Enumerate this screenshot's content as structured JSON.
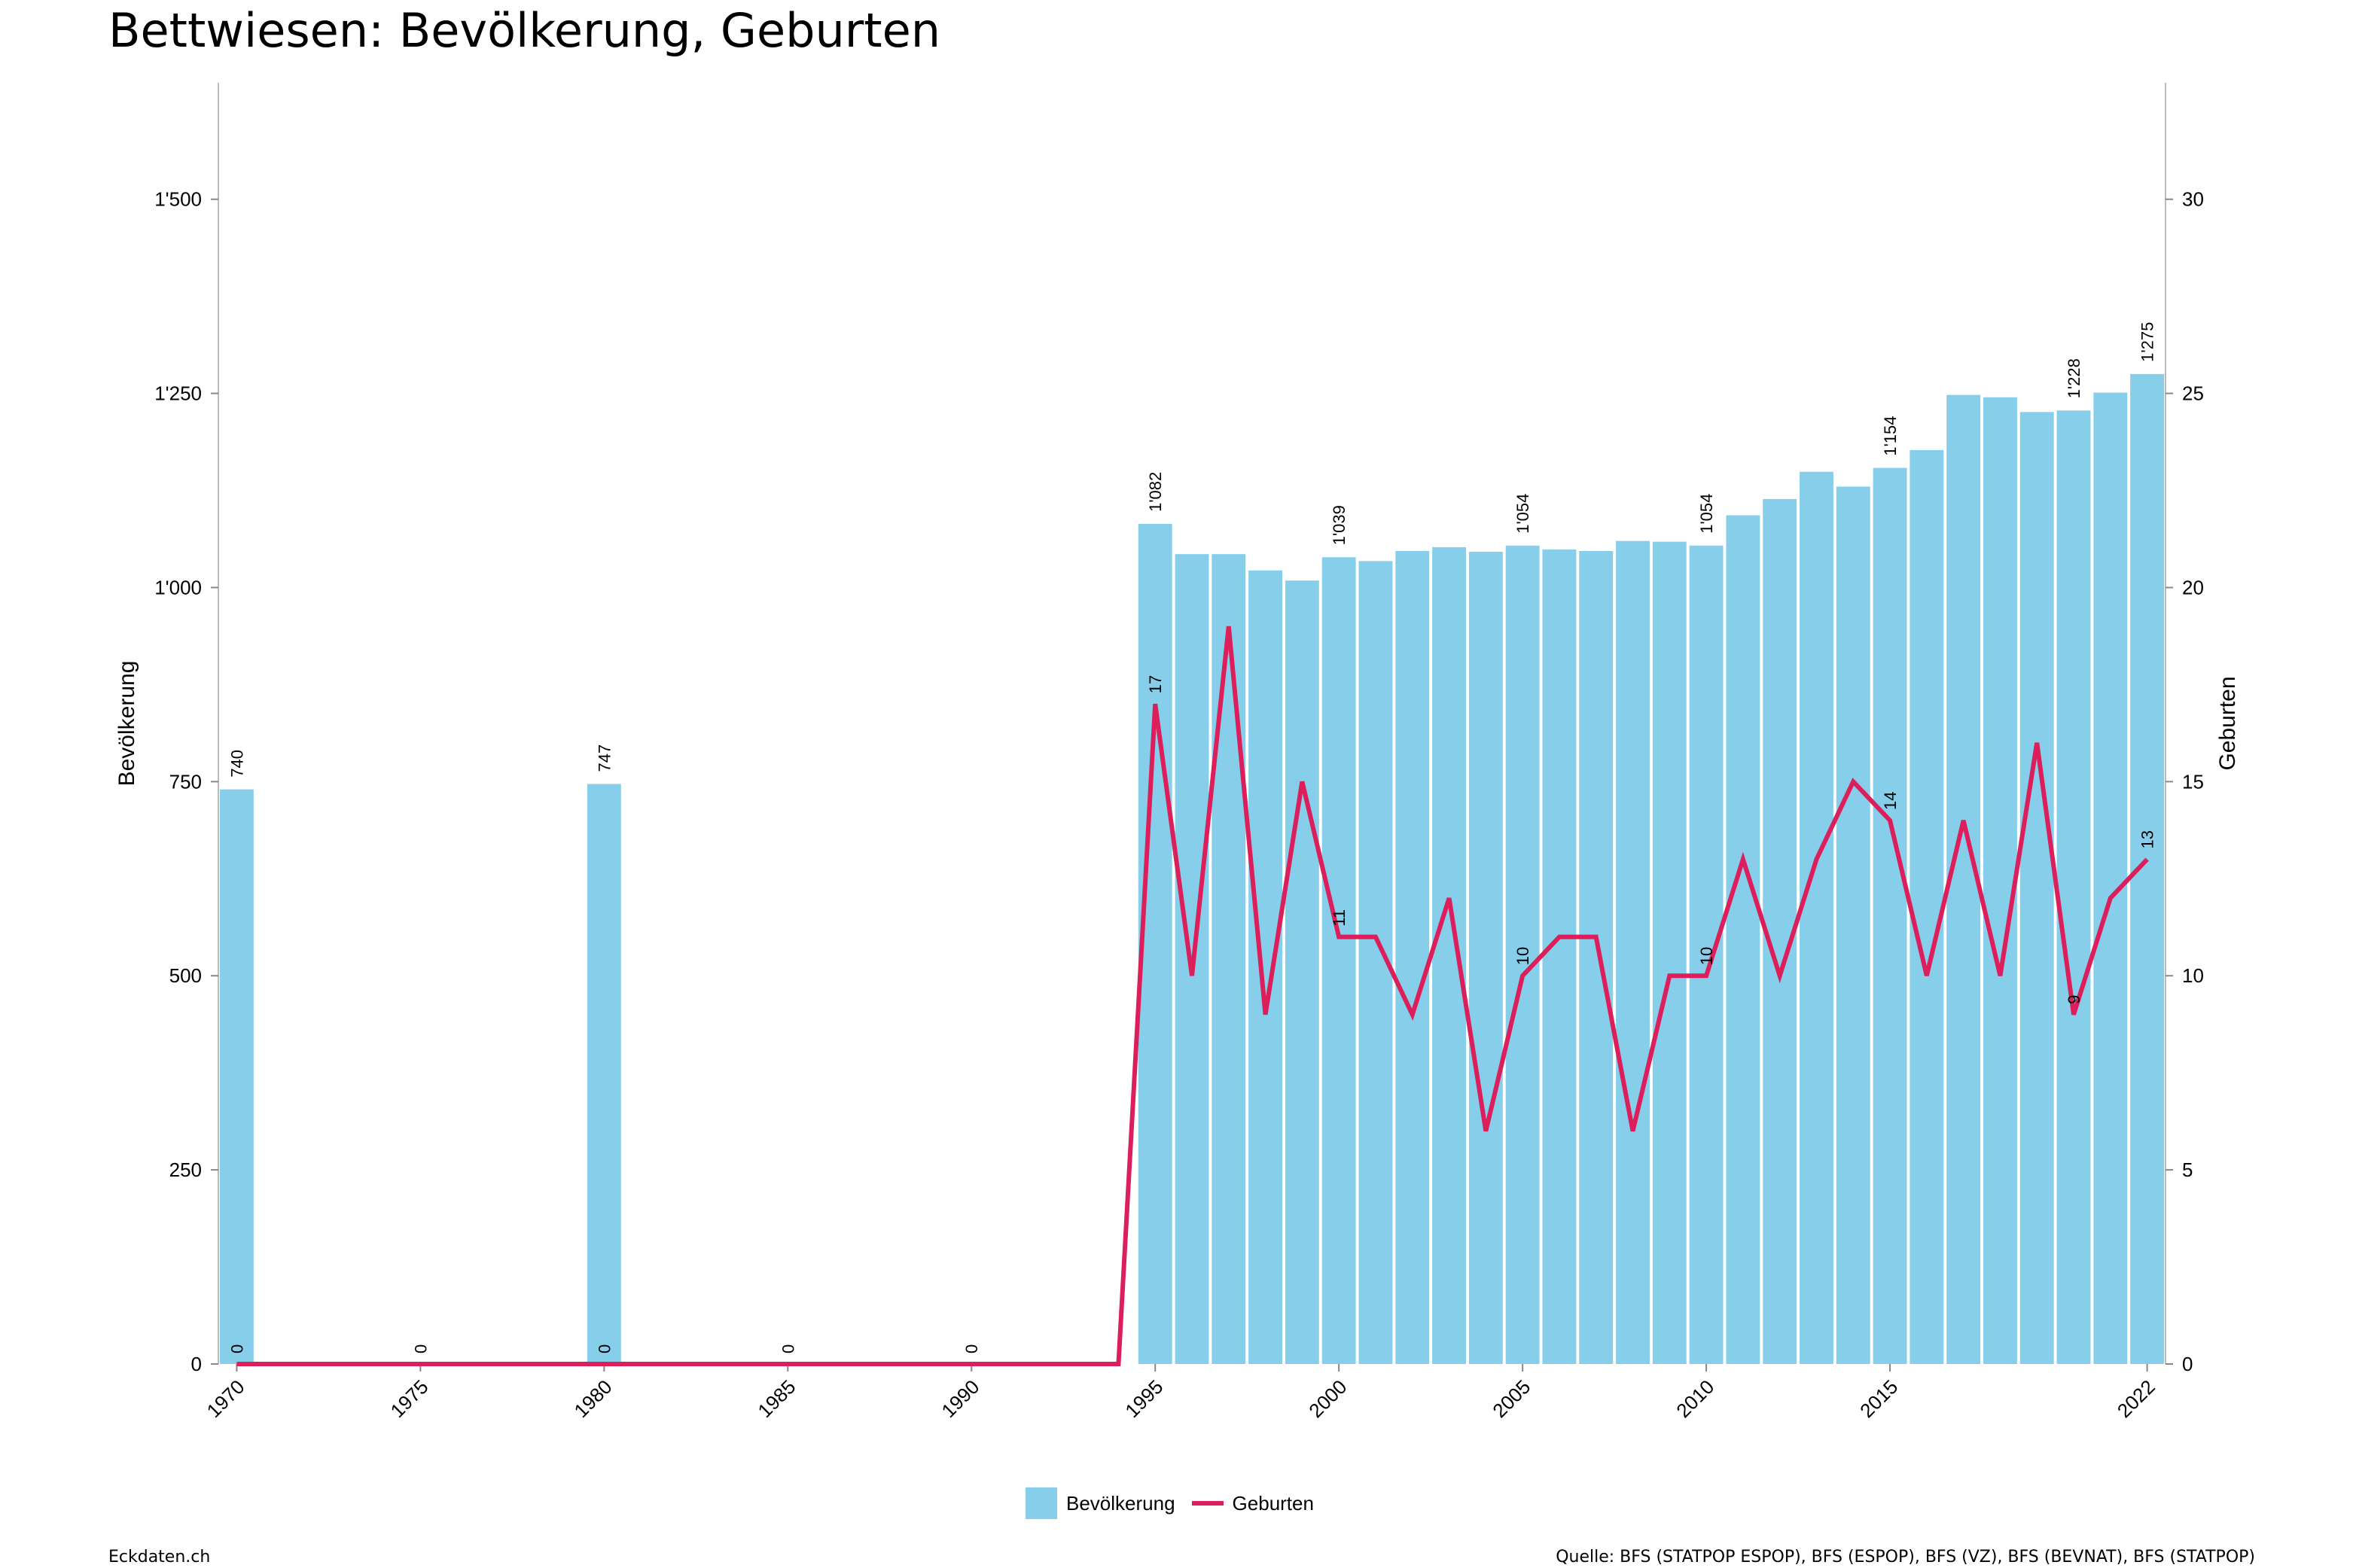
{
  "title": "Bettwiesen: Bevölkerung, Geburten",
  "footer": {
    "left": "Eckdaten.ch",
    "right": "Quelle: BFS (STATPOP ESPOP), BFS (ESPOP), BFS (VZ), BFS (BEVNAT), BFS (STATPOP)"
  },
  "colors": {
    "bar": "#87CEEB",
    "line": "#DC1E5A",
    "axis": "#555555"
  },
  "chart_data": {
    "type": "bar",
    "xlabel": "",
    "ylabel": "Bevölkerung",
    "y2label": "Geburten",
    "ylim": [
      0,
      1650
    ],
    "y2lim": [
      0,
      33
    ],
    "yticks": [
      0,
      250,
      500,
      750,
      1000,
      1250,
      1500
    ],
    "ytick_labels": [
      "0",
      "250",
      "500",
      "750",
      "1'000",
      "1'250",
      "1'500"
    ],
    "y2ticks": [
      0,
      5,
      10,
      15,
      20,
      25,
      30
    ],
    "xticks": [
      1970,
      1975,
      1980,
      1985,
      1990,
      1995,
      2000,
      2005,
      2010,
      2015,
      2022
    ],
    "legend": [
      "Bevölkerung",
      "Geburten"
    ],
    "legend_position": "bottom",
    "x": [
      1970,
      1975,
      1980,
      1985,
      1990,
      1994,
      1995,
      1996,
      1997,
      1998,
      1999,
      2000,
      2001,
      2002,
      2003,
      2004,
      2005,
      2006,
      2007,
      2008,
      2009,
      2010,
      2011,
      2012,
      2013,
      2014,
      2015,
      2016,
      2017,
      2018,
      2019,
      2020,
      2021,
      2022
    ],
    "series": [
      {
        "name": "Bevölkerung",
        "type": "bar",
        "values": [
          740,
          null,
          747,
          null,
          null,
          null,
          1082,
          1043,
          1043,
          1022,
          1009,
          1039,
          1034,
          1047,
          1052,
          1046,
          1054,
          1049,
          1047,
          1060,
          1059,
          1054,
          1093,
          1114,
          1149,
          1130,
          1154,
          1177,
          1248,
          1245,
          1226,
          1228,
          1251,
          1275
        ]
      },
      {
        "name": "Geburten",
        "type": "line",
        "values": [
          0,
          0,
          0,
          0,
          0,
          0,
          17,
          10,
          19,
          9,
          15,
          11,
          11,
          9,
          12,
          6,
          10,
          11,
          11,
          6,
          10,
          10,
          13,
          10,
          13,
          15,
          14,
          10,
          14,
          10,
          16,
          9,
          12,
          13
        ]
      }
    ],
    "bar_labels": [
      {
        "x": 1970,
        "text": "740"
      },
      {
        "x": 1980,
        "text": "747"
      },
      {
        "x": 1995,
        "text": "1'082"
      },
      {
        "x": 2000,
        "text": "1'039"
      },
      {
        "x": 2005,
        "text": "1'054"
      },
      {
        "x": 2010,
        "text": "1'054"
      },
      {
        "x": 2015,
        "text": "1'154"
      },
      {
        "x": 2020,
        "text": "1'228"
      },
      {
        "x": 2022,
        "text": "1'275"
      }
    ],
    "line_labels": [
      {
        "x": 1970,
        "text": "0"
      },
      {
        "x": 1975,
        "text": "0"
      },
      {
        "x": 1980,
        "text": "0"
      },
      {
        "x": 1985,
        "text": "0"
      },
      {
        "x": 1990,
        "text": "0"
      },
      {
        "x": 1995,
        "text": "17"
      },
      {
        "x": 2000,
        "text": "11"
      },
      {
        "x": 2005,
        "text": "10"
      },
      {
        "x": 2010,
        "text": "10"
      },
      {
        "x": 2015,
        "text": "14"
      },
      {
        "x": 2020,
        "text": "9"
      },
      {
        "x": 2022,
        "text": "13"
      }
    ]
  }
}
